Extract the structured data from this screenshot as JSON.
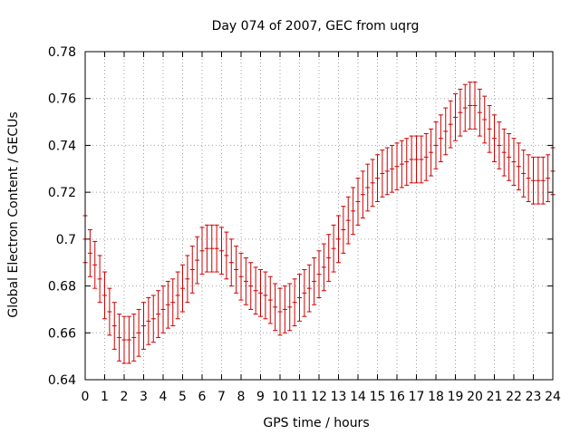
{
  "chart_data": {
    "type": "scatter",
    "title": "Day 074 of 2007, GEC from uqrg",
    "xlabel": "GPS time / hours",
    "ylabel": "Global Electron Content / GECUs",
    "xlim": [
      0,
      24
    ],
    "ylim": [
      0.64,
      0.78
    ],
    "grid": true,
    "error_bars": true,
    "colors": {
      "series": "#cc0000",
      "grid": "#a0a0a0",
      "axis": "#000000"
    },
    "x_ticks": [
      0,
      1,
      2,
      3,
      4,
      5,
      6,
      7,
      8,
      9,
      10,
      11,
      12,
      13,
      14,
      15,
      16,
      17,
      18,
      19,
      20,
      21,
      22,
      23,
      24
    ],
    "x_tick_labels": [
      "0",
      "1",
      "2",
      "3",
      "4",
      "5",
      "6",
      "7",
      "8",
      "9",
      "10",
      "11",
      "12",
      "13",
      "14",
      "15",
      "16",
      "17",
      "18",
      "19",
      "20",
      "21",
      "22",
      "23",
      "24"
    ],
    "y_ticks": [
      0.64,
      0.66,
      0.68,
      0.7,
      0.72,
      0.74,
      0.76,
      0.78
    ],
    "y_tick_labels": [
      "0.64",
      "0.66",
      "0.68",
      "0.7",
      "0.72",
      "0.74",
      "0.76",
      "0.78"
    ],
    "series": [
      {
        "error": 0.01,
        "points": [
          [
            0.0,
            0.7
          ],
          [
            0.25,
            0.694
          ],
          [
            0.5,
            0.689
          ],
          [
            0.75,
            0.683
          ],
          [
            1.0,
            0.676
          ],
          [
            1.25,
            0.669
          ],
          [
            1.5,
            0.663
          ],
          [
            1.75,
            0.658
          ],
          [
            2.0,
            0.657
          ],
          [
            2.25,
            0.657
          ],
          [
            2.5,
            0.658
          ],
          [
            2.75,
            0.66
          ],
          [
            3.0,
            0.663
          ],
          [
            3.25,
            0.665
          ],
          [
            3.5,
            0.666
          ],
          [
            3.75,
            0.668
          ],
          [
            4.0,
            0.67
          ],
          [
            4.25,
            0.672
          ],
          [
            4.5,
            0.673
          ],
          [
            4.75,
            0.676
          ],
          [
            5.0,
            0.679
          ],
          [
            5.25,
            0.683
          ],
          [
            5.5,
            0.687
          ],
          [
            5.75,
            0.691
          ],
          [
            6.0,
            0.695
          ],
          [
            6.25,
            0.696
          ],
          [
            6.5,
            0.696
          ],
          [
            6.75,
            0.696
          ],
          [
            7.0,
            0.695
          ],
          [
            7.25,
            0.693
          ],
          [
            7.5,
            0.69
          ],
          [
            7.75,
            0.687
          ],
          [
            8.0,
            0.684
          ],
          [
            8.25,
            0.682
          ],
          [
            8.5,
            0.68
          ],
          [
            8.75,
            0.678
          ],
          [
            9.0,
            0.677
          ],
          [
            9.25,
            0.676
          ],
          [
            9.5,
            0.674
          ],
          [
            9.75,
            0.671
          ],
          [
            10.0,
            0.669
          ],
          [
            10.25,
            0.67
          ],
          [
            10.5,
            0.671
          ],
          [
            10.75,
            0.673
          ],
          [
            11.0,
            0.675
          ],
          [
            11.25,
            0.677
          ],
          [
            11.5,
            0.679
          ],
          [
            11.75,
            0.682
          ],
          [
            12.0,
            0.685
          ],
          [
            12.25,
            0.688
          ],
          [
            12.5,
            0.692
          ],
          [
            12.75,
            0.696
          ],
          [
            13.0,
            0.7
          ],
          [
            13.25,
            0.704
          ],
          [
            13.5,
            0.708
          ],
          [
            13.75,
            0.712
          ],
          [
            14.0,
            0.716
          ],
          [
            14.25,
            0.719
          ],
          [
            14.5,
            0.722
          ],
          [
            14.75,
            0.724
          ],
          [
            15.0,
            0.726
          ],
          [
            15.25,
            0.728
          ],
          [
            15.5,
            0.729
          ],
          [
            15.75,
            0.73
          ],
          [
            16.0,
            0.731
          ],
          [
            16.25,
            0.732
          ],
          [
            16.5,
            0.733
          ],
          [
            16.75,
            0.734
          ],
          [
            17.0,
            0.734
          ],
          [
            17.25,
            0.734
          ],
          [
            17.5,
            0.735
          ],
          [
            17.75,
            0.737
          ],
          [
            18.0,
            0.74
          ],
          [
            18.25,
            0.743
          ],
          [
            18.5,
            0.746
          ],
          [
            18.75,
            0.749
          ],
          [
            19.0,
            0.752
          ],
          [
            19.25,
            0.754
          ],
          [
            19.5,
            0.756
          ],
          [
            19.75,
            0.757
          ],
          [
            20.0,
            0.757
          ],
          [
            20.25,
            0.754
          ],
          [
            20.5,
            0.751
          ],
          [
            20.75,
            0.747
          ],
          [
            21.0,
            0.743
          ],
          [
            21.25,
            0.74
          ],
          [
            21.5,
            0.737
          ],
          [
            21.75,
            0.735
          ],
          [
            22.0,
            0.733
          ],
          [
            22.25,
            0.731
          ],
          [
            22.5,
            0.728
          ],
          [
            22.75,
            0.726
          ],
          [
            23.0,
            0.725
          ],
          [
            23.25,
            0.725
          ],
          [
            23.5,
            0.725
          ],
          [
            23.75,
            0.726
          ],
          [
            24.0,
            0.729
          ]
        ]
      }
    ]
  }
}
